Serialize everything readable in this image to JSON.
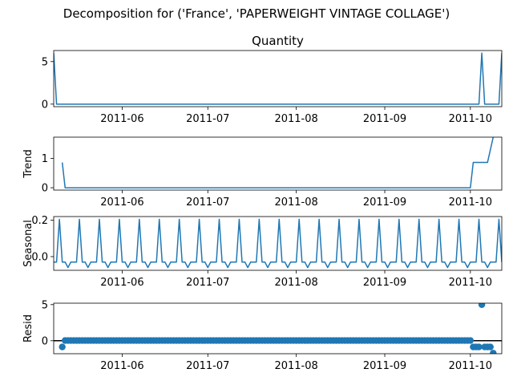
{
  "suptitle": "Decomposition for ('France', 'PAPERWEIGHT VINTAGE COLLAGE')",
  "line_color": "#1f77b4",
  "chart_data": [
    {
      "type": "line",
      "title": "Quantity",
      "ylabel": "",
      "xlim": [
        "2011-05-08",
        "2011-10-12"
      ],
      "ylim": [
        -0.3,
        6.3
      ],
      "yticks": [
        0,
        5
      ],
      "xticks": [
        "2011-06-01",
        "2011-07-01",
        "2011-08-01",
        "2011-09-01",
        "2011-10-01"
      ],
      "xtick_labels": [
        "2011-06",
        "2011-07",
        "2011-08",
        "2011-09",
        "2011-10"
      ],
      "series": [
        {
          "points": [
            [
              "2011-05-08",
              6
            ],
            [
              "2011-05-09",
              0
            ],
            [
              "2011-10-04",
              0
            ],
            [
              "2011-10-05",
              6
            ],
            [
              "2011-10-06",
              0
            ],
            [
              "2011-10-11",
              0
            ],
            [
              "2011-10-12",
              6
            ]
          ]
        }
      ]
    },
    {
      "type": "line",
      "title": "",
      "ylabel": "Trend",
      "xlim": [
        "2011-05-08",
        "2011-10-12"
      ],
      "ylim": [
        -0.08,
        1.72
      ],
      "yticks": [
        0,
        1
      ],
      "xticks": [
        "2011-06-01",
        "2011-07-01",
        "2011-08-01",
        "2011-09-01",
        "2011-10-01"
      ],
      "xtick_labels": [
        "2011-06",
        "2011-07",
        "2011-08",
        "2011-09",
        "2011-10"
      ],
      "series": [
        {
          "points": [
            [
              "2011-05-11",
              0.86
            ],
            [
              "2011-05-12",
              0
            ],
            [
              "2011-10-01",
              0
            ],
            [
              "2011-10-02",
              0.86
            ],
            [
              "2011-10-07",
              0.86
            ],
            [
              "2011-10-09",
              1.72
            ]
          ]
        }
      ]
    },
    {
      "type": "line",
      "title": "",
      "ylabel": "Seasonal",
      "xlim": [
        "2011-05-08",
        "2011-10-12"
      ],
      "ylim": [
        -0.075,
        0.22
      ],
      "yticks": [
        -0.0,
        0.2
      ],
      "ytick_labels": [
        "0.0",
        "0.2"
      ],
      "xticks": [
        "2011-06-01",
        "2011-07-01",
        "2011-08-01",
        "2011-09-01",
        "2011-10-01"
      ],
      "xtick_labels": [
        "2011-06",
        "2011-07",
        "2011-08",
        "2011-09",
        "2011-10"
      ],
      "period_start": "2011-05-08",
      "period_pattern": [
        -0.03,
        -0.03,
        0.205,
        -0.03,
        -0.03,
        -0.06,
        -0.03
      ]
    },
    {
      "type": "scatter",
      "title": "",
      "ylabel": "Resid",
      "xlim": [
        "2011-05-08",
        "2011-10-12"
      ],
      "ylim": [
        -1.8,
        5.2
      ],
      "yticks": [
        0,
        5
      ],
      "hline": 0,
      "xticks": [
        "2011-06-01",
        "2011-07-01",
        "2011-08-01",
        "2011-09-01",
        "2011-10-01"
      ],
      "xtick_labels": [
        "2011-06",
        "2011-07",
        "2011-08",
        "2011-09",
        "2011-10"
      ],
      "start": "2011-05-11",
      "end": "2011-10-09",
      "default_value": 0.03,
      "special_points": {
        "2011-05-11": -0.86,
        "2011-10-02": -0.86,
        "2011-10-03": -0.86,
        "2011-10-04": -0.86,
        "2011-10-05": 5.0,
        "2011-10-06": -0.86,
        "2011-10-07": -0.86,
        "2011-10-08": -0.86,
        "2011-10-09": -1.72
      }
    }
  ]
}
